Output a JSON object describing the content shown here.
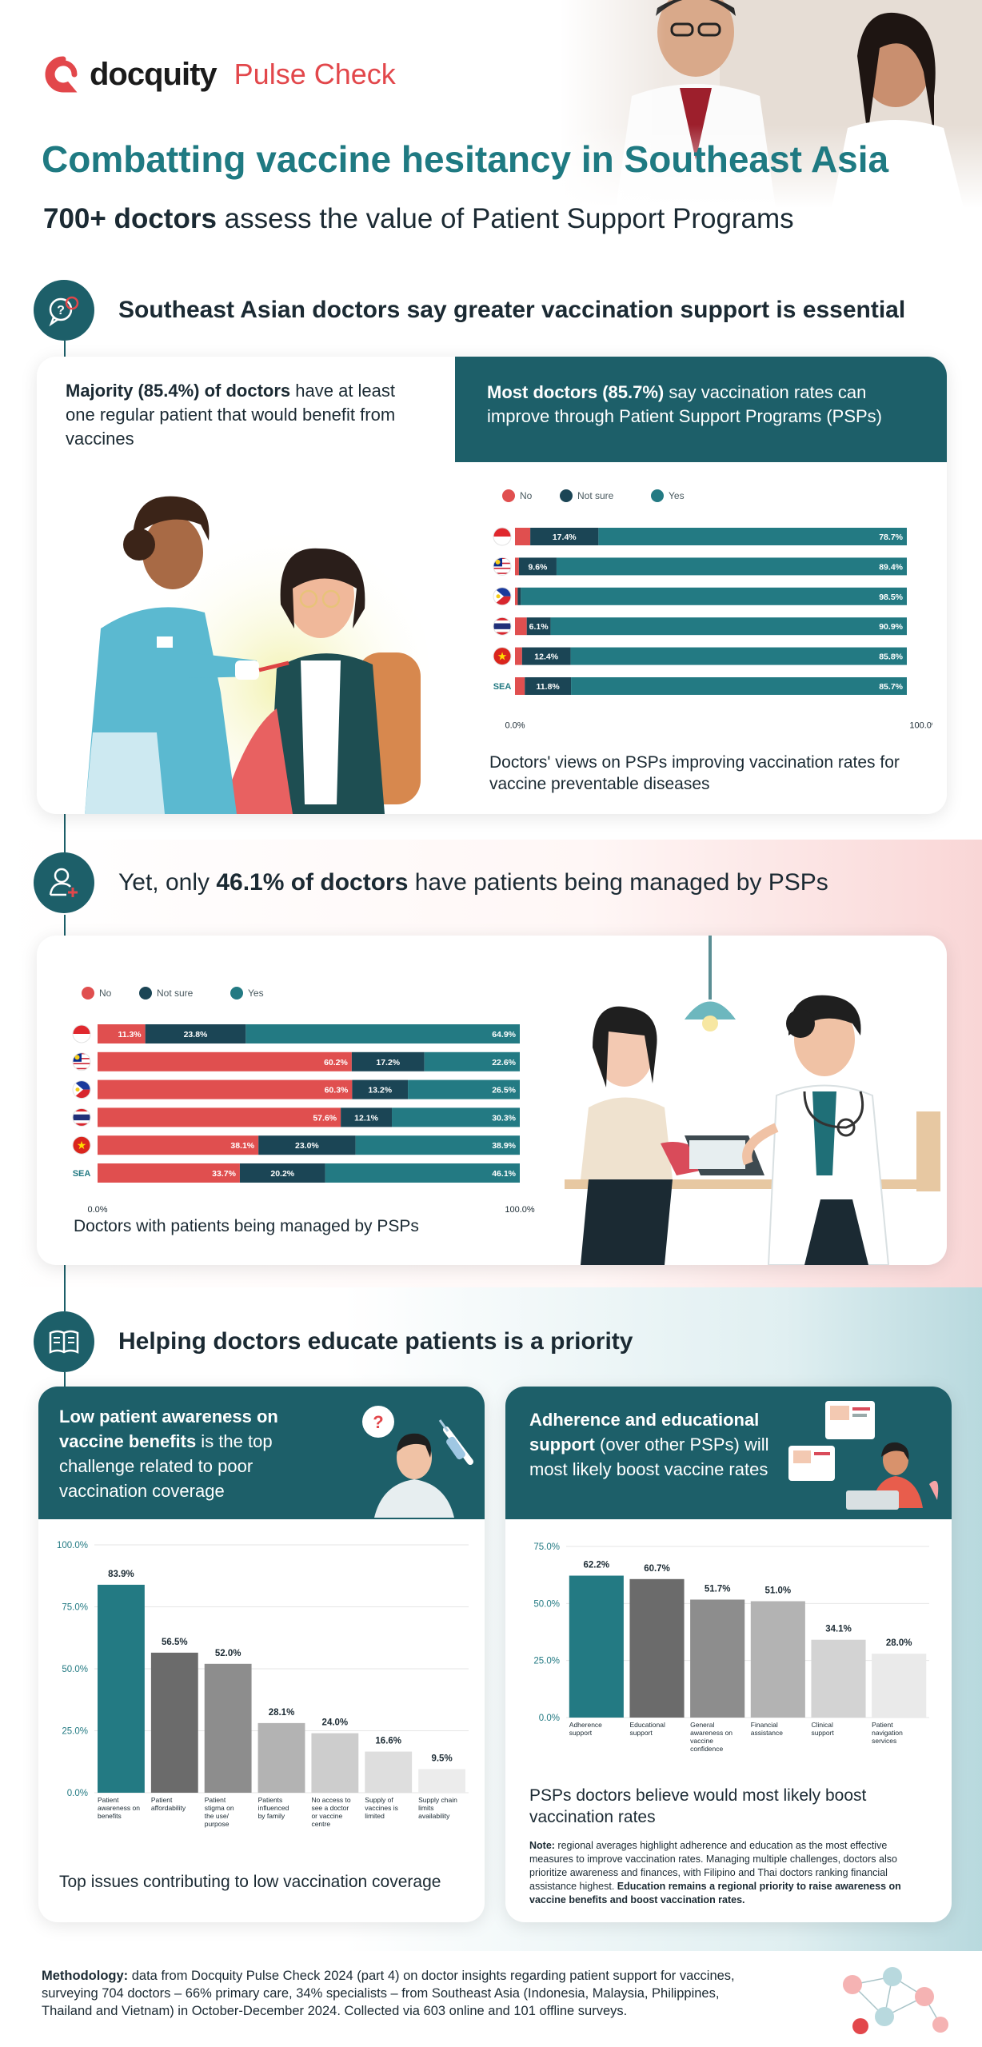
{
  "header": {
    "logo_word": "docquity",
    "logo_sub": "Pulse Check",
    "title": "Combatting vaccine hesitancy in Southeast Asia",
    "subtitle_bold": "700+ doctors",
    "subtitle_rest": " assess the value of Patient Support Programs"
  },
  "colors": {
    "no": "#e04f4f",
    "not_sure": "#1b4555",
    "yes": "#237a83",
    "teal_dark": "#1d5f69"
  },
  "section1": {
    "icon": "chat-question-icon",
    "title": "Southeast Asian doctors say greater vaccination support is essential",
    "left_bold": "Majority (85.4%) of doctors",
    "left_rest": " have at least one regular patient that would benefit from vaccines",
    "right_bold": "Most doctors (85.7%)",
    "right_rest": " say vaccination rates can improve through Patient Support Programs (PSPs)",
    "caption": "Doctors' views on PSPs improving vaccination rates for vaccine preventable diseases"
  },
  "section2": {
    "icon": "doctor-plus-icon",
    "title_pre": "Yet, only ",
    "title_bold": "46.1% of doctors",
    "title_post": " have patients being managed by PSPs",
    "caption": "Doctors with patients being managed by PSPs"
  },
  "section3": {
    "icon": "open-book-icon",
    "title": "Helping doctors educate patients is a priority",
    "left_bold": "Low patient awareness on vaccine benefits",
    "left_rest": " is the top challenge related to poor vaccination coverage",
    "left_caption": "Top issues contributing to low vaccination coverage",
    "right_bold": "Adherence and educational support",
    "right_rest": " (over other PSPs) will most likely boost vaccine rates",
    "right_caption": "PSPs doctors believe would most likely boost vaccination rates",
    "note_label": "Note:",
    "note_text": " regional averages highlight adherence and education as the most effective measures to improve vaccination rates. Managing multiple challenges, doctors also prioritize awareness and finances, with Filipino and Thai doctors ranking financial assistance highest. ",
    "note_bold": "Education remains a regional priority to raise awareness on vaccine benefits and boost vaccination rates."
  },
  "methodology": {
    "label": "Methodology:",
    "text": " data from Docquity Pulse Check 2024 (part 4) on doctor insights regarding patient support for vaccines, surveying 704 doctors – 66% primary care, 34% specialists – from Southeast Asia (Indonesia, Malaysia, Philippines, Thailand and Vietnam) in October-December 2024. Collected via 603 online and 101 offline surveys."
  },
  "chart_data": [
    {
      "type": "bar",
      "orientation": "horizontal",
      "stacked": true,
      "legend": [
        "No",
        "Not sure",
        "Yes"
      ],
      "categories": [
        "Indonesia",
        "Malaysia",
        "Philippines",
        "Thailand",
        "Vietnam",
        "SEA"
      ],
      "category_labels": [
        "",
        "",
        "",
        "",
        "",
        "SEA"
      ],
      "flags": [
        "id",
        "my",
        "ph",
        "th",
        "vn",
        ""
      ],
      "series": [
        {
          "name": "No",
          "values": [
            3.9,
            1.0,
            0.7,
            3.0,
            1.8,
            2.5
          ]
        },
        {
          "name": "Not sure",
          "values": [
            17.4,
            9.6,
            0.8,
            6.1,
            12.4,
            11.8
          ]
        },
        {
          "name": "Yes",
          "values": [
            78.7,
            89.4,
            98.5,
            90.9,
            85.8,
            85.7
          ]
        }
      ],
      "labels": [
        [
          "",
          "17.4%",
          "78.7%"
        ],
        [
          "",
          "9.6%",
          "89.4%"
        ],
        [
          "",
          "",
          "98.5%"
        ],
        [
          "",
          "6.1%",
          "90.9%"
        ],
        [
          "",
          "12.4%",
          "85.8%"
        ],
        [
          "",
          "11.8%",
          "85.7%"
        ]
      ],
      "axis_min_label": "0.0%",
      "axis_max_label": "100.0%",
      "xlim": [
        0,
        100
      ],
      "title": "Doctors' views on PSPs improving vaccination rates for vaccine preventable diseases"
    },
    {
      "type": "bar",
      "orientation": "horizontal",
      "stacked": true,
      "legend": [
        "No",
        "Not sure",
        "Yes"
      ],
      "categories": [
        "Indonesia",
        "Malaysia",
        "Philippines",
        "Thailand",
        "Vietnam",
        "SEA"
      ],
      "category_labels": [
        "",
        "",
        "",
        "",
        "",
        "SEA"
      ],
      "flags": [
        "id",
        "my",
        "ph",
        "th",
        "vn",
        ""
      ],
      "series": [
        {
          "name": "No",
          "values": [
            11.3,
            60.2,
            60.3,
            57.6,
            38.1,
            33.7
          ]
        },
        {
          "name": "Not sure",
          "values": [
            23.8,
            17.2,
            13.2,
            12.1,
            23.0,
            20.2
          ]
        },
        {
          "name": "Yes",
          "values": [
            64.9,
            22.6,
            26.5,
            30.3,
            38.9,
            46.1
          ]
        }
      ],
      "labels": [
        [
          "11.3%",
          "23.8%",
          "64.9%"
        ],
        [
          "60.2%",
          "17.2%",
          "22.6%"
        ],
        [
          "60.3%",
          "13.2%",
          "26.5%"
        ],
        [
          "57.6%",
          "12.1%",
          "30.3%"
        ],
        [
          "38.1%",
          "23.0%",
          "38.9%"
        ],
        [
          "33.7%",
          "20.2%",
          "46.1%"
        ]
      ],
      "axis_min_label": "0.0%",
      "axis_max_label": "100.0%",
      "xlim": [
        0,
        100
      ],
      "title": "Doctors with patients being managed by PSPs"
    },
    {
      "type": "bar",
      "categories": [
        "Patient awareness on benefits",
        "Patient affordability",
        "Patient stigma on the use/ purpose",
        "Patients influenced by family",
        "No access to see a doctor or vaccine centre",
        "Supply of vaccines is limited",
        "Supply chain limits availability"
      ],
      "values": [
        83.9,
        56.5,
        52.0,
        28.1,
        24.0,
        16.6,
        9.5
      ],
      "colors": [
        "#237a83",
        "#6b6b6b",
        "#8d8d8d",
        "#b3b3b3",
        "#cdcdcd",
        "#dedede",
        "#ececec"
      ],
      "ylim": [
        0,
        100
      ],
      "yticks": [
        "0.0%",
        "25.0%",
        "50.0%",
        "75.0%",
        "100.0%"
      ],
      "title": "Top issues contributing to low vaccination coverage"
    },
    {
      "type": "bar",
      "categories": [
        "Adherence support",
        "Educational support",
        "General awareness on vaccine confidence",
        "Financial assistance",
        "Clinical support",
        "Patient navigation services"
      ],
      "values": [
        62.2,
        60.7,
        51.7,
        51.0,
        34.1,
        28.0
      ],
      "colors": [
        "#237a83",
        "#6b6b6b",
        "#8d8d8d",
        "#b3b3b3",
        "#d3d3d3",
        "#eaeaea"
      ],
      "ylim": [
        0,
        75
      ],
      "yticks": [
        "0.0%",
        "25.0%",
        "50.0%",
        "75.0%"
      ],
      "title": "PSPs doctors believe would most likely boost vaccination rates"
    }
  ]
}
